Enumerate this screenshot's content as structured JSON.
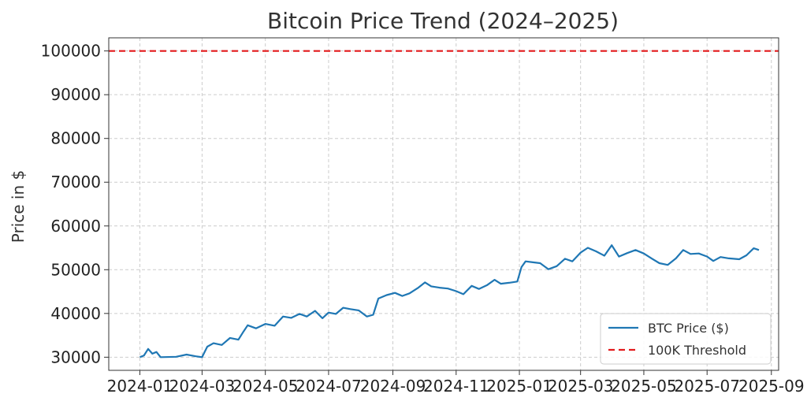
{
  "chart_data": {
    "type": "line",
    "title": "Bitcoin Price Trend (2024–2025)",
    "xlabel": "",
    "ylabel": "Price in $",
    "x_ticks": [
      "2024-01",
      "2024-03",
      "2024-05",
      "2024-07",
      "2024-09",
      "2024-11",
      "2025-01",
      "2025-03",
      "2025-05",
      "2025-07",
      "2025-09"
    ],
    "y_ticks": [
      30000,
      40000,
      50000,
      60000,
      70000,
      80000,
      90000,
      100000
    ],
    "xlim": [
      "2023-12-02",
      "2025-09-08"
    ],
    "ylim": [
      27000,
      103000
    ],
    "grid": true,
    "legend_position": "bottom-right",
    "series": [
      {
        "name": "BTC Price ($)",
        "color": "#1f77b4",
        "style": "solid",
        "points": [
          [
            "2024-01-01",
            30000
          ],
          [
            "2024-01-05",
            30400
          ],
          [
            "2024-01-09",
            31900
          ],
          [
            "2024-01-13",
            30800
          ],
          [
            "2024-01-17",
            31200
          ],
          [
            "2024-01-21",
            30000
          ],
          [
            "2024-02-05",
            30100
          ],
          [
            "2024-02-15",
            30600
          ],
          [
            "2024-02-24",
            30200
          ],
          [
            "2024-03-01",
            30000
          ],
          [
            "2024-03-06",
            32400
          ],
          [
            "2024-03-12",
            33200
          ],
          [
            "2024-03-20",
            32800
          ],
          [
            "2024-03-28",
            34400
          ],
          [
            "2024-04-05",
            34000
          ],
          [
            "2024-04-10",
            35900
          ],
          [
            "2024-04-14",
            37300
          ],
          [
            "2024-04-22",
            36600
          ],
          [
            "2024-05-01",
            37600
          ],
          [
            "2024-05-10",
            37200
          ],
          [
            "2024-05-18",
            39300
          ],
          [
            "2024-05-26",
            39000
          ],
          [
            "2024-06-03",
            39900
          ],
          [
            "2024-06-10",
            39300
          ],
          [
            "2024-06-18",
            40600
          ],
          [
            "2024-06-25",
            38900
          ],
          [
            "2024-07-01",
            40200
          ],
          [
            "2024-07-08",
            39900
          ],
          [
            "2024-07-15",
            41300
          ],
          [
            "2024-07-22",
            41000
          ],
          [
            "2024-07-30",
            40700
          ],
          [
            "2024-08-07",
            39300
          ],
          [
            "2024-08-13",
            39700
          ],
          [
            "2024-08-18",
            43400
          ],
          [
            "2024-08-26",
            44200
          ],
          [
            "2024-09-03",
            44700
          ],
          [
            "2024-09-10",
            44000
          ],
          [
            "2024-09-17",
            44600
          ],
          [
            "2024-09-25",
            45800
          ],
          [
            "2024-10-02",
            47100
          ],
          [
            "2024-10-08",
            46200
          ],
          [
            "2024-10-16",
            45900
          ],
          [
            "2024-10-24",
            45700
          ],
          [
            "2024-11-01",
            45100
          ],
          [
            "2024-11-08",
            44400
          ],
          [
            "2024-11-16",
            46300
          ],
          [
            "2024-11-23",
            45600
          ],
          [
            "2024-12-01",
            46500
          ],
          [
            "2024-12-08",
            47700
          ],
          [
            "2024-12-14",
            46800
          ],
          [
            "2024-12-22",
            47000
          ],
          [
            "2024-12-30",
            47300
          ],
          [
            "2025-01-03",
            50600
          ],
          [
            "2025-01-07",
            51900
          ],
          [
            "2025-01-14",
            51700
          ],
          [
            "2025-01-21",
            51500
          ],
          [
            "2025-01-29",
            50100
          ],
          [
            "2025-02-06",
            50800
          ],
          [
            "2025-02-14",
            52500
          ],
          [
            "2025-02-21",
            51900
          ],
          [
            "2025-03-01",
            53900
          ],
          [
            "2025-03-08",
            55000
          ],
          [
            "2025-03-16",
            54200
          ],
          [
            "2025-03-24",
            53200
          ],
          [
            "2025-03-31",
            55600
          ],
          [
            "2025-04-07",
            53000
          ],
          [
            "2025-04-15",
            53800
          ],
          [
            "2025-04-23",
            54500
          ],
          [
            "2025-05-01",
            53700
          ],
          [
            "2025-05-09",
            52500
          ],
          [
            "2025-05-16",
            51500
          ],
          [
            "2025-05-24",
            51100
          ],
          [
            "2025-06-01",
            52600
          ],
          [
            "2025-06-08",
            54500
          ],
          [
            "2025-06-15",
            53600
          ],
          [
            "2025-06-23",
            53700
          ],
          [
            "2025-07-01",
            53000
          ],
          [
            "2025-07-07",
            52000
          ],
          [
            "2025-07-14",
            52900
          ],
          [
            "2025-07-22",
            52600
          ],
          [
            "2025-08-01",
            52400
          ],
          [
            "2025-08-08",
            53300
          ],
          [
            "2025-08-15",
            54900
          ],
          [
            "2025-08-20",
            54500
          ]
        ]
      },
      {
        "name": "100K Threshold",
        "color": "#e31a1c",
        "style": "dashed",
        "points": [
          [
            "2023-12-02",
            100000
          ],
          [
            "2025-09-08",
            100000
          ]
        ]
      }
    ]
  }
}
